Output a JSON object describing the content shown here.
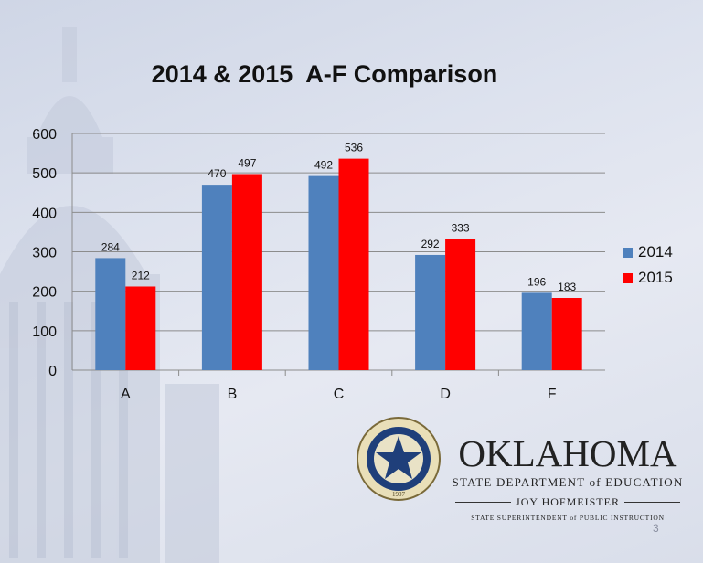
{
  "slide": {
    "title": "2014 & 2015  A-F Comparison",
    "page_number": "3",
    "colors": {
      "series_2014": "#4f81bd",
      "series_2015": "#ff0000",
      "gridline": "#8c8c8c",
      "background": "#dde2ee"
    }
  },
  "chart_data": {
    "type": "bar",
    "title": "2014 & 2015  A-F Comparison",
    "categories": [
      "A",
      "B",
      "C",
      "D",
      "F"
    ],
    "series": [
      {
        "name": "2014",
        "values": [
          284,
          470,
          492,
          292,
          196
        ]
      },
      {
        "name": "2015",
        "values": [
          212,
          497,
          536,
          333,
          183
        ]
      }
    ],
    "xlabel": "",
    "ylabel": "",
    "ylim": [
      0,
      600
    ],
    "yticks": [
      0,
      100,
      200,
      300,
      400,
      500,
      600
    ],
    "grid": true,
    "legend_position": "right"
  },
  "logo": {
    "seal_text": "GREAT SEAL OF THE STATE OF OKLAHOMA",
    "seal_year": "1907",
    "name": "OKLAHOMA",
    "department": "STATE DEPARTMENT of EDUCATION",
    "person": "JOY HOFMEISTER",
    "office": "STATE SUPERINTENDENT of PUBLIC INSTRUCTION"
  }
}
